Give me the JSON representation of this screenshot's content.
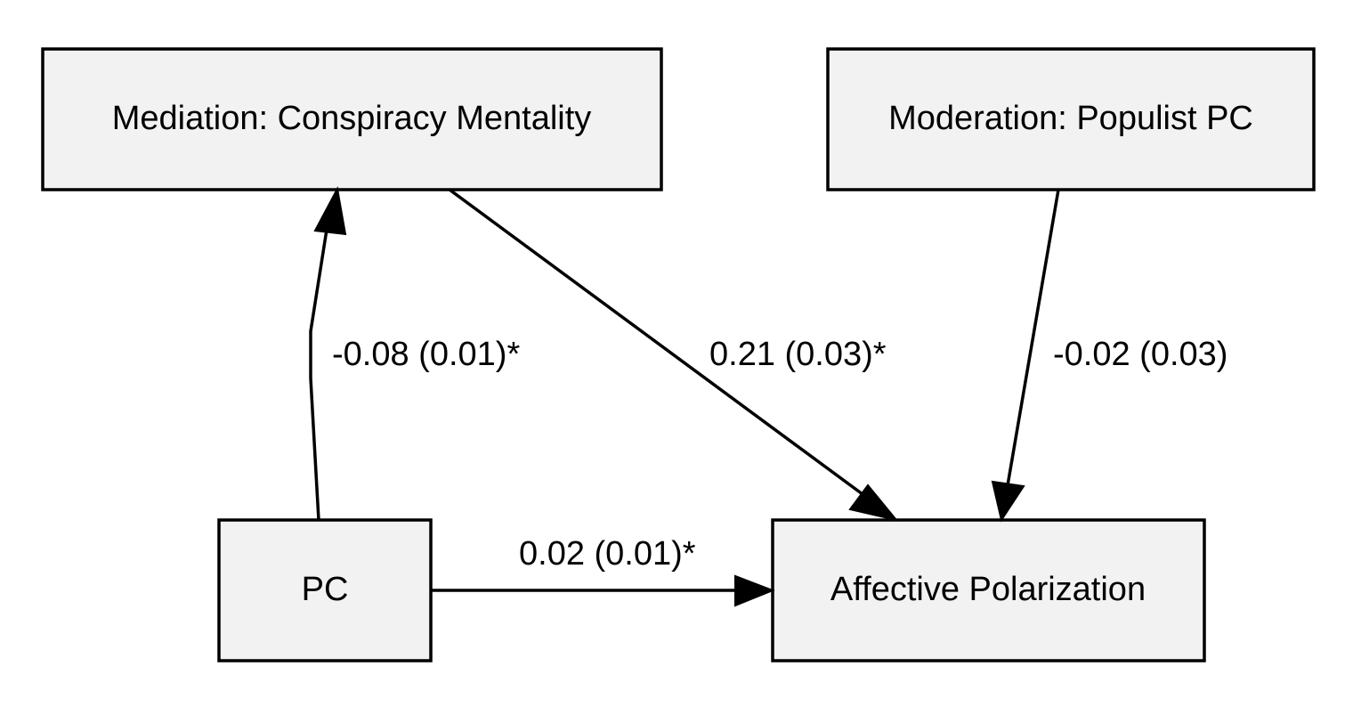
{
  "nodes": {
    "mediation": {
      "label": "Mediation: Conspiracy Mentality"
    },
    "moderation": {
      "label": "Moderation: Populist PC"
    },
    "pc": {
      "label": "PC"
    },
    "affective": {
      "label": "Affective Polarization"
    }
  },
  "edges": {
    "pc_to_mediation": {
      "label": "-0.08 (0.01)*"
    },
    "mediation_to_affective": {
      "label": "0.21 (0.03)*"
    },
    "moderation_to_affective": {
      "label": "-0.02 (0.03)"
    },
    "pc_to_affective": {
      "label": "0.02 (0.01)*"
    }
  }
}
